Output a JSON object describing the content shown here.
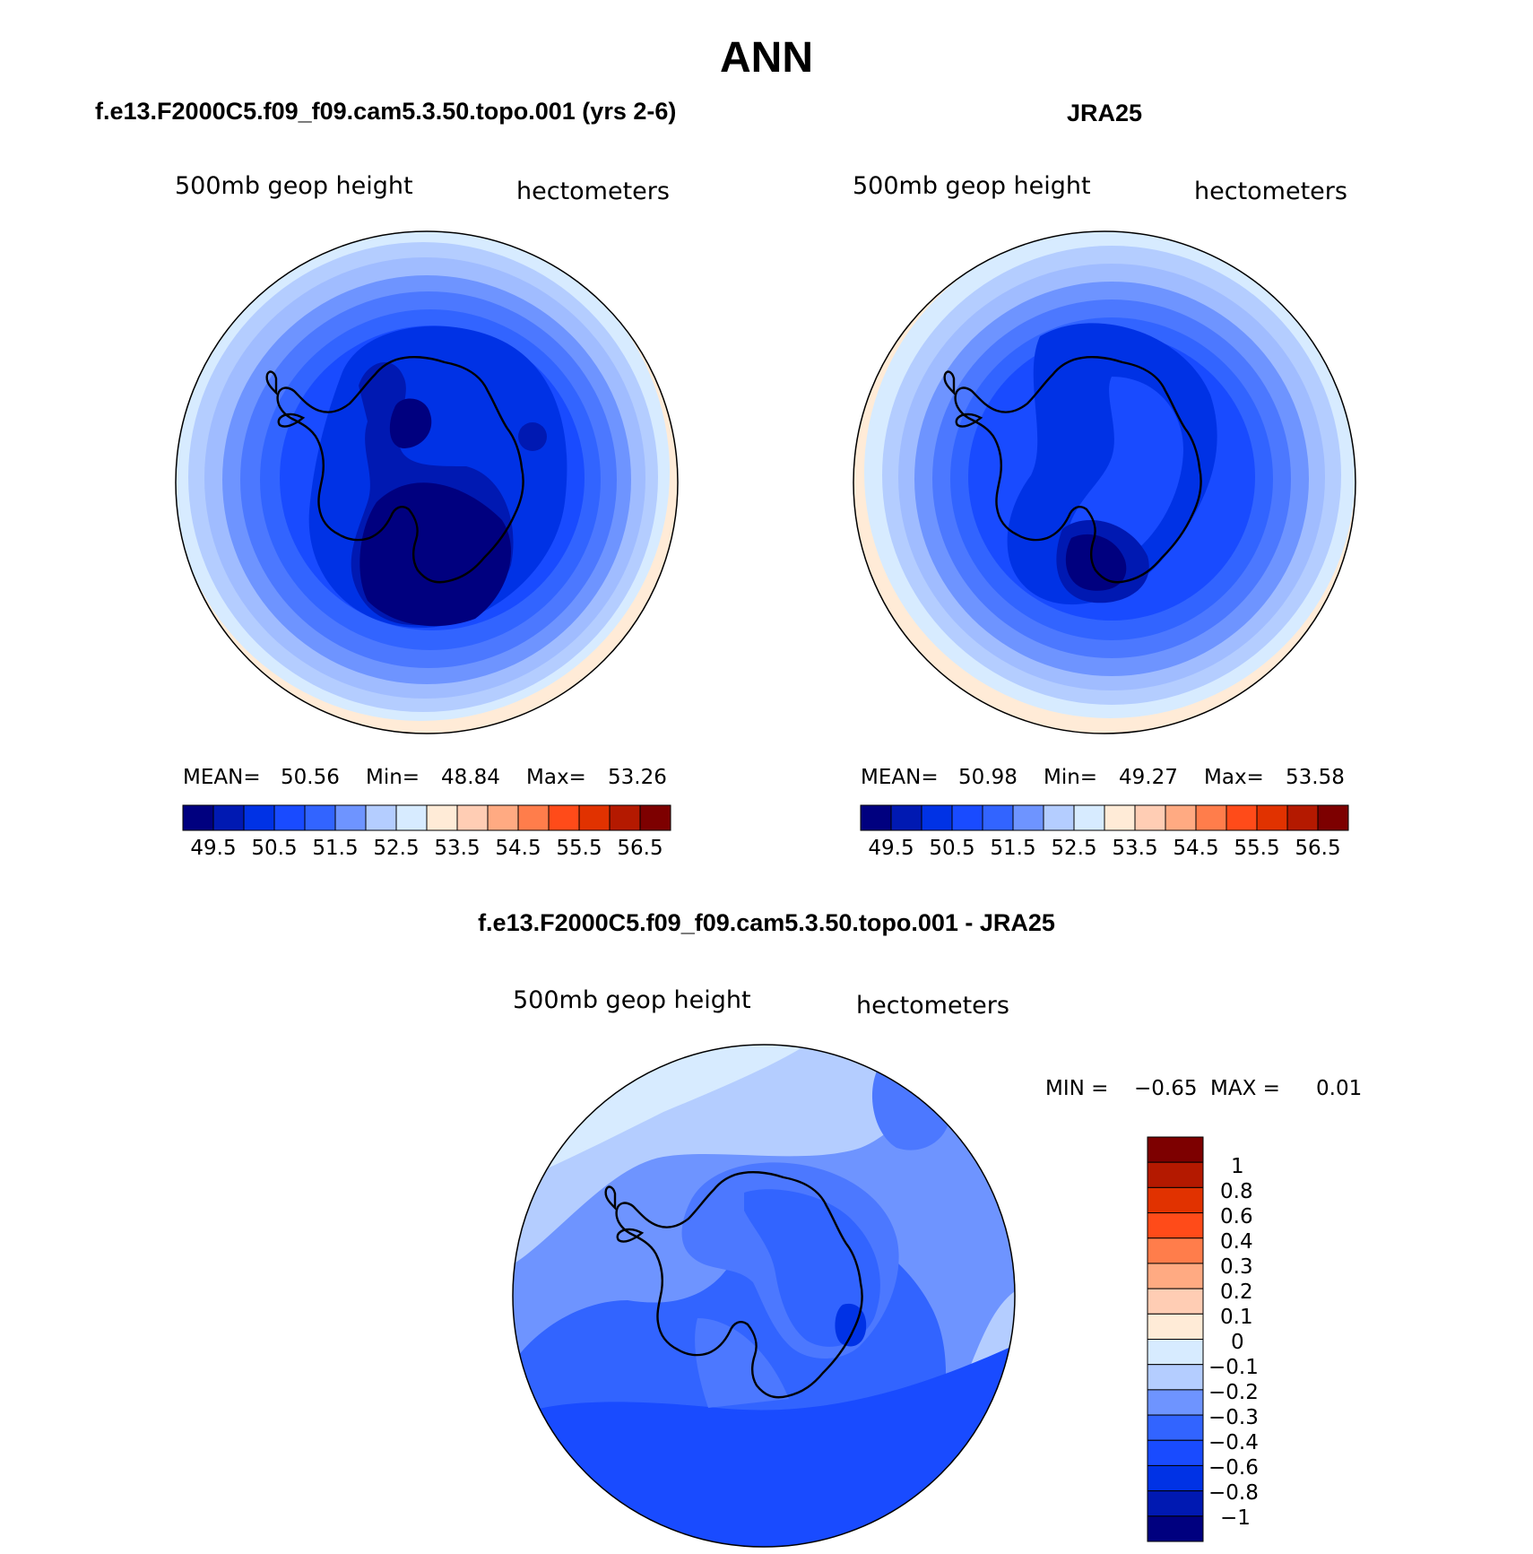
{
  "title": "ANN",
  "colors": {
    "abs_palette": [
      "#00007f",
      "#0019b2",
      "#0032e5",
      "#194bff",
      "#3264ff",
      "#6e94ff",
      "#b4cdff",
      "#d7ebff",
      "#ffebd7",
      "#ffcdb4",
      "#ffaa82",
      "#ff7d4b",
      "#ff4b19",
      "#e13200",
      "#b41900",
      "#7d0000"
    ],
    "diff_palette": [
      "#00007f",
      "#0019b2",
      "#0032e5",
      "#194bff",
      "#3264ff",
      "#6e94ff",
      "#b4cdff",
      "#d7ebff",
      "#ffebd7",
      "#ffcdb4",
      "#ffaa82",
      "#ff7d4b",
      "#ff4b19",
      "#e13200",
      "#b41900",
      "#7d0000"
    ],
    "coastline": "#000000"
  },
  "panels": {
    "model": {
      "title": "f.e13.F2000C5.f09_f09.cam5.3.50.topo.001 (yrs 2-6)",
      "var_label": "500mb geop height",
      "units": "hectometers",
      "stats": {
        "mean_label": "MEAN=",
        "mean": "50.56",
        "min_label": "Min=",
        "min": "48.84",
        "max_label": "Max=",
        "max": "53.26"
      },
      "colorbar_labels": [
        "49.5",
        "50.5",
        "51.5",
        "52.5",
        "53.5",
        "54.5",
        "55.5",
        "56.5"
      ]
    },
    "obs": {
      "title": "JRA25",
      "var_label": "500mb geop height",
      "units": "hectometers",
      "stats": {
        "mean_label": "MEAN=",
        "mean": "50.98",
        "min_label": "Min=",
        "min": "49.27",
        "max_label": "Max=",
        "max": "53.58"
      },
      "colorbar_labels": [
        "49.5",
        "50.5",
        "51.5",
        "52.5",
        "53.5",
        "54.5",
        "55.5",
        "56.5"
      ]
    },
    "diff": {
      "title": "f.e13.F2000C5.f09_f09.cam5.3.50.topo.001 - JRA25",
      "var_label": "500mb geop height",
      "units": "hectometers",
      "stats": {
        "min_label": "MIN =",
        "min": "−0.65",
        "max_label": "MAX =",
        "max": "0.01"
      },
      "colorbar_labels": [
        "1",
        "0.8",
        "0.6",
        "0.4",
        "0.3",
        "0.2",
        "0.1",
        "0",
        "−0.1",
        "−0.2",
        "−0.3",
        "−0.4",
        "−0.6",
        "−0.8",
        "−1"
      ]
    }
  },
  "chart_data": [
    {
      "type": "heatmap",
      "projection": "south-polar-stereographic",
      "title": "f.e13.F2000C5.f09_f09.cam5.3.50.topo.001 (yrs 2-6)",
      "variable": "500mb geop height",
      "units": "hectometers",
      "mean": 50.56,
      "min": 48.84,
      "max": 53.26,
      "levels": [
        49.5,
        50,
        50.5,
        51,
        51.5,
        52,
        52.5,
        53,
        53.5,
        54,
        54.5,
        55,
        55.5,
        56,
        56.5
      ]
    },
    {
      "type": "heatmap",
      "projection": "south-polar-stereographic",
      "title": "JRA25",
      "variable": "500mb geop height",
      "units": "hectometers",
      "mean": 50.98,
      "min": 49.27,
      "max": 53.58,
      "levels": [
        49.5,
        50,
        50.5,
        51,
        51.5,
        52,
        52.5,
        53,
        53.5,
        54,
        54.5,
        55,
        55.5,
        56,
        56.5
      ]
    },
    {
      "type": "heatmap",
      "projection": "south-polar-stereographic",
      "title": "f.e13.F2000C5.f09_f09.cam5.3.50.topo.001 - JRA25",
      "variable": "500mb geop height",
      "units": "hectometers",
      "min": -0.65,
      "max": 0.01,
      "levels": [
        -1,
        -0.8,
        -0.6,
        -0.4,
        -0.3,
        -0.2,
        -0.1,
        0,
        0.1,
        0.2,
        0.3,
        0.4,
        0.6,
        0.8,
        1
      ]
    }
  ]
}
